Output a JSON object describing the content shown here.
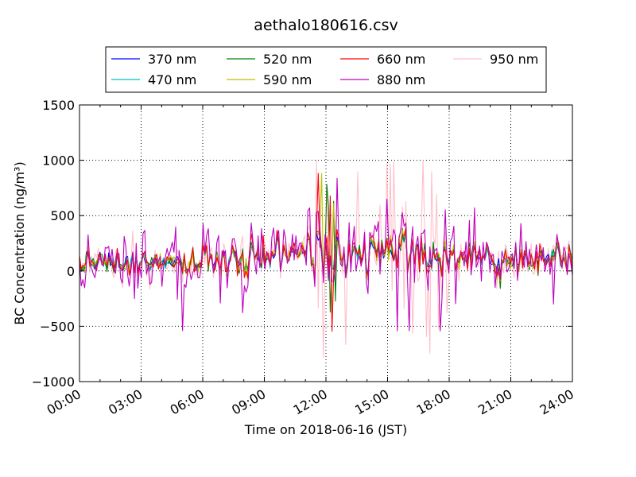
{
  "chart_data": {
    "type": "line",
    "title": "aethalo180616.csv",
    "xlabel": "Time on 2018-06-16 (JST)",
    "ylabel": "BC Concentration (ng/m³)",
    "xlim": [
      0,
      24
    ],
    "ylim": [
      -1000,
      1500
    ],
    "x_tick_labels": [
      "00:00",
      "03:00",
      "06:00",
      "09:00",
      "12:00",
      "15:00",
      "18:00",
      "21:00",
      "24:00"
    ],
    "x_tick_values": [
      0,
      3,
      6,
      9,
      12,
      15,
      18,
      21,
      24
    ],
    "y_tick_values": [
      -1000,
      -500,
      0,
      500,
      1000,
      1500
    ],
    "y_tick_labels": [
      "−1000",
      "−500",
      "0",
      "500",
      "1000",
      "1500"
    ],
    "grid": true,
    "legend_placement": "top-center",
    "series": [
      {
        "name": "370 nm",
        "color": "#0000ff"
      },
      {
        "name": "470 nm",
        "color": "#00bfbf"
      },
      {
        "name": "520 nm",
        "color": "#008000"
      },
      {
        "name": "590 nm",
        "color": "#bfbf00"
      },
      {
        "name": "660 nm",
        "color": "#ff0000"
      },
      {
        "name": "880 nm",
        "color": "#bf00bf"
      },
      {
        "name": "950 nm",
        "color": "#ffc0cb"
      }
    ]
  }
}
